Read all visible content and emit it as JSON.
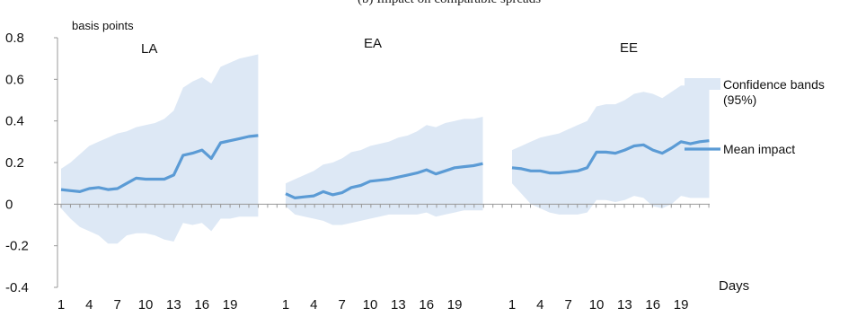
{
  "chart_data": {
    "type": "line",
    "title": "(b) Impact on comparable spreads",
    "ylabel": "basis points",
    "xlabel": "Days",
    "ylim": [
      -0.4,
      0.8
    ],
    "yticks": [
      "-0.4",
      "-0.2",
      "0",
      "0.2",
      "0.4",
      "0.6",
      "0.8"
    ],
    "xtick_labels": [
      "1",
      "4",
      "7",
      "10",
      "13",
      "16",
      "19"
    ],
    "legend": {
      "placement": "right",
      "band_label": "Confidence bands (95%)",
      "line_label": "Mean impact"
    },
    "colors": {
      "band": "#dde8f5",
      "line": "#5b9bd5",
      "axis": "#999999"
    },
    "panels": [
      {
        "label": "LA",
        "days": [
          1,
          2,
          3,
          4,
          5,
          6,
          7,
          8,
          9,
          10,
          11,
          12,
          13,
          14,
          15,
          16,
          17,
          18,
          19,
          20,
          21,
          22
        ],
        "mean": [
          0.07,
          0.065,
          0.06,
          0.075,
          0.08,
          0.07,
          0.075,
          0.1,
          0.125,
          0.12,
          0.12,
          0.12,
          0.14,
          0.235,
          0.245,
          0.26,
          0.22,
          0.295,
          0.305,
          0.315,
          0.325,
          0.33
        ],
        "upper": [
          0.17,
          0.2,
          0.24,
          0.28,
          0.3,
          0.32,
          0.34,
          0.35,
          0.37,
          0.38,
          0.39,
          0.41,
          0.45,
          0.56,
          0.59,
          0.61,
          0.58,
          0.66,
          0.68,
          0.7,
          0.71,
          0.72
        ],
        "lower": [
          -0.02,
          -0.07,
          -0.11,
          -0.13,
          -0.15,
          -0.19,
          -0.19,
          -0.15,
          -0.14,
          -0.14,
          -0.15,
          -0.17,
          -0.18,
          -0.09,
          -0.1,
          -0.09,
          -0.13,
          -0.07,
          -0.07,
          -0.06,
          -0.06,
          -0.06
        ]
      },
      {
        "label": "EA",
        "days": [
          1,
          2,
          3,
          4,
          5,
          6,
          7,
          8,
          9,
          10,
          11,
          12,
          13,
          14,
          15,
          16,
          17,
          18,
          19,
          20,
          21,
          22
        ],
        "mean": [
          0.05,
          0.03,
          0.035,
          0.04,
          0.06,
          0.045,
          0.055,
          0.08,
          0.09,
          0.11,
          0.115,
          0.12,
          0.13,
          0.14,
          0.15,
          0.165,
          0.145,
          0.16,
          0.175,
          0.18,
          0.185,
          0.195
        ],
        "upper": [
          0.1,
          0.12,
          0.14,
          0.16,
          0.19,
          0.2,
          0.22,
          0.25,
          0.26,
          0.28,
          0.29,
          0.3,
          0.32,
          0.33,
          0.35,
          0.38,
          0.37,
          0.39,
          0.4,
          0.41,
          0.41,
          0.42
        ],
        "lower": [
          -0.01,
          -0.05,
          -0.06,
          -0.07,
          -0.08,
          -0.1,
          -0.1,
          -0.09,
          -0.08,
          -0.07,
          -0.06,
          -0.05,
          -0.05,
          -0.05,
          -0.05,
          -0.04,
          -0.06,
          -0.05,
          -0.04,
          -0.03,
          -0.03,
          -0.03
        ]
      },
      {
        "label": "EE",
        "days": [
          1,
          2,
          3,
          4,
          5,
          6,
          7,
          8,
          9,
          10,
          11,
          12,
          13,
          14,
          15,
          16,
          17,
          18,
          19,
          20,
          21,
          22
        ],
        "mean": [
          0.175,
          0.17,
          0.16,
          0.16,
          0.15,
          0.15,
          0.155,
          0.16,
          0.175,
          0.25,
          0.25,
          0.245,
          0.26,
          0.28,
          0.285,
          0.26,
          0.245,
          0.27,
          0.3,
          0.29,
          0.3,
          0.305
        ],
        "upper": [
          0.26,
          0.28,
          0.3,
          0.32,
          0.33,
          0.34,
          0.36,
          0.38,
          0.4,
          0.47,
          0.48,
          0.48,
          0.5,
          0.53,
          0.54,
          0.53,
          0.51,
          0.54,
          0.57,
          0.57,
          0.58,
          0.6
        ],
        "lower": [
          0.1,
          0.05,
          0.0,
          -0.02,
          -0.04,
          -0.05,
          -0.05,
          -0.05,
          -0.04,
          0.02,
          0.02,
          0.01,
          0.02,
          0.04,
          0.03,
          -0.01,
          -0.02,
          0.0,
          0.04,
          0.03,
          0.03,
          0.03
        ]
      }
    ]
  }
}
